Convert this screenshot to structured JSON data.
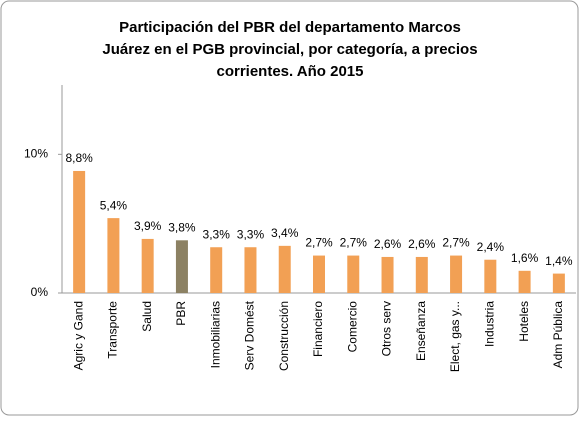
{
  "chart_data": {
    "type": "bar",
    "title": [
      "Participación del PBR del departamento Marcos",
      "Juárez en el PGB provincial, por categoría, a precios",
      "corrientes. Año 2015"
    ],
    "categories": [
      "Agric y Gand",
      "Transporte",
      "Salud",
      "PBR",
      "Inmobiliarias",
      "Serv Domést",
      "Construcción",
      "Financiero",
      "Comercio",
      "Otros serv",
      "Enseñanza",
      "Elect, gas y...",
      "Industria",
      "Hoteles",
      "Adm Pública"
    ],
    "values": [
      8.8,
      5.4,
      3.9,
      3.8,
      3.3,
      3.3,
      3.4,
      2.7,
      2.7,
      2.6,
      2.6,
      2.7,
      2.4,
      1.6,
      1.4
    ],
    "value_labels": [
      "8,8%",
      "5,4%",
      "3,9%",
      "3,8%",
      "3,3%",
      "3,3%",
      "3,4%",
      "2,7%",
      "2,7%",
      "2,6%",
      "2,6%",
      "2,7%",
      "2,4%",
      "1,6%",
      "1,4%"
    ],
    "colors": [
      "#f2a054",
      "#f2a054",
      "#f2a054",
      "#8c8163",
      "#f2a054",
      "#f2a054",
      "#f2a054",
      "#f2a054",
      "#f2a054",
      "#f2a054",
      "#f2a054",
      "#f2a054",
      "#f2a054",
      "#f2a054",
      "#f2a054"
    ],
    "ylim": [
      0,
      15
    ],
    "yticks": [
      {
        "value": 0,
        "label": "0%"
      },
      {
        "value": 10,
        "label": "10%"
      }
    ]
  }
}
